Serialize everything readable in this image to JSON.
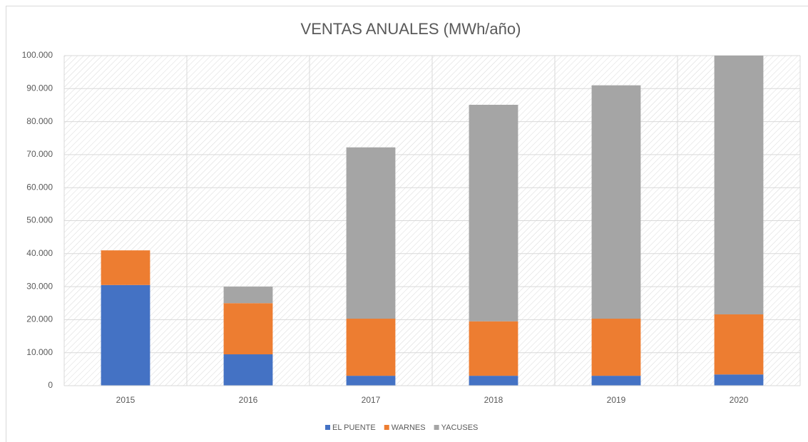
{
  "chart_data": {
    "type": "stacked_bar",
    "title": "VENTAS ANUALES (MWh/año)",
    "categories": [
      "2015",
      "2016",
      "2017",
      "2018",
      "2019",
      "2020"
    ],
    "series": [
      {
        "name": "EL PUENTE",
        "color": "#4472c4",
        "values": [
          30500,
          9500,
          3000,
          3000,
          3000,
          3400
        ]
      },
      {
        "name": "WARNES",
        "color": "#ed7d31",
        "values": [
          10500,
          15500,
          17300,
          16500,
          17300,
          18200
        ]
      },
      {
        "name": "YACUSES",
        "color": "#a5a5a5",
        "values": [
          0,
          5000,
          51900,
          65600,
          70700,
          78400
        ]
      }
    ],
    "ylim": [
      0,
      100000
    ],
    "yticks": [
      0,
      {
        "value": 10000,
        "label": "10.000"
      },
      {
        "value": 20000,
        "label": "20.000"
      },
      {
        "value": 30000,
        "label": "30.000"
      },
      {
        "value": 40000,
        "label": "40.000"
      },
      {
        "value": 50000,
        "label": "50.000"
      },
      {
        "value": 60000,
        "label": "60.000"
      },
      {
        "value": 70000,
        "label": "70.000"
      },
      {
        "value": 80000,
        "label": "80.000"
      },
      {
        "value": 90000,
        "label": "90.000"
      },
      {
        "value": 100000,
        "label": "100.000"
      }
    ],
    "grid": true,
    "legend": "bottom"
  }
}
